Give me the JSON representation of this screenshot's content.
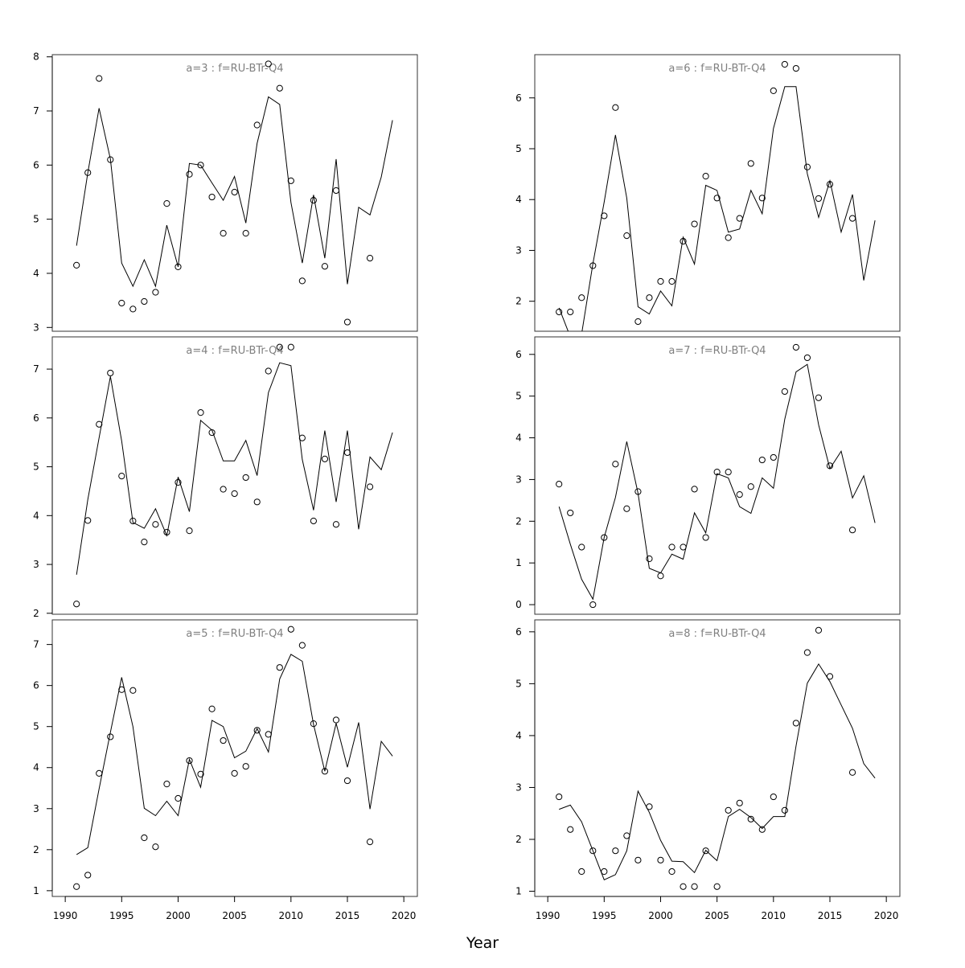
{
  "chart_data": {
    "type": "scatter+line",
    "xlabel": "Year",
    "xlim": [
      1988.85,
      2021.2
    ],
    "xticks": [
      1990,
      1995,
      2000,
      2005,
      2010,
      2015,
      2020
    ],
    "years": [
      1991,
      1992,
      1993,
      1994,
      1995,
      1996,
      1997,
      1998,
      1999,
      2000,
      2001,
      2002,
      2003,
      2004,
      2005,
      2006,
      2007,
      2008,
      2009,
      2010,
      2011,
      2012,
      2013,
      2014,
      2015,
      2016,
      2017,
      2018,
      2019
    ],
    "panels": [
      {
        "title": "a=3  :  f=RU-BTr-Q4",
        "ylim": [
          2.93,
          8.04
        ],
        "yticks": [
          3,
          4,
          5,
          6,
          7,
          8
        ],
        "observed": [
          4.15,
          5.86,
          7.6,
          6.1,
          3.45,
          3.34,
          3.48,
          3.65,
          5.29,
          4.12,
          5.83,
          6.0,
          5.41,
          4.74,
          5.5,
          4.74,
          6.74,
          7.87,
          7.42,
          5.71,
          3.86,
          5.35,
          4.13,
          5.53,
          3.1,
          null,
          4.28,
          null,
          null
        ],
        "fitted": [
          4.51,
          5.86,
          7.05,
          6.11,
          4.19,
          3.76,
          4.25,
          3.76,
          4.89,
          4.12,
          6.03,
          6.0,
          5.67,
          5.35,
          5.79,
          4.93,
          6.4,
          7.26,
          7.12,
          5.31,
          4.19,
          5.45,
          4.28,
          6.11,
          3.8,
          5.22,
          5.08,
          5.78,
          6.83
        ]
      },
      {
        "title": "a=4  :  f=RU-BTr-Q4",
        "ylim": [
          1.98,
          7.66
        ],
        "yticks": [
          2,
          3,
          4,
          5,
          6,
          7
        ],
        "observed": [
          2.19,
          3.9,
          5.87,
          6.92,
          4.81,
          3.89,
          3.46,
          3.82,
          3.66,
          4.68,
          3.69,
          6.11,
          5.7,
          4.54,
          4.45,
          4.78,
          4.28,
          6.96,
          7.45,
          7.45,
          5.59,
          3.89,
          5.16,
          3.82,
          5.29,
          null,
          4.59,
          null,
          null
        ],
        "fitted": [
          2.79,
          4.33,
          5.59,
          6.85,
          5.53,
          3.86,
          3.74,
          4.14,
          3.59,
          4.79,
          4.08,
          5.95,
          5.75,
          5.12,
          5.12,
          5.54,
          4.82,
          6.52,
          7.13,
          7.07,
          5.15,
          4.11,
          5.74,
          4.28,
          5.74,
          3.72,
          5.2,
          4.94,
          5.7
        ]
      },
      {
        "title": "a=5  :  f=RU-BTr-Q4",
        "ylim": [
          0.86,
          7.6
        ],
        "yticks": [
          1,
          2,
          3,
          4,
          5,
          6,
          7
        ],
        "observed": [
          1.1,
          1.38,
          3.86,
          4.75,
          5.9,
          5.88,
          2.29,
          2.07,
          3.6,
          3.25,
          4.17,
          3.84,
          5.43,
          4.66,
          3.86,
          4.03,
          4.91,
          4.81,
          6.44,
          7.37,
          6.98,
          5.07,
          3.91,
          5.16,
          3.68,
          null,
          2.19,
          null,
          null
        ],
        "fitted": [
          1.88,
          2.05,
          3.48,
          4.86,
          6.2,
          5.0,
          3.01,
          2.83,
          3.18,
          2.83,
          4.2,
          3.52,
          5.15,
          5.0,
          4.24,
          4.4,
          4.95,
          4.38,
          6.16,
          6.76,
          6.59,
          5.05,
          3.91,
          5.08,
          4.01,
          5.1,
          2.99,
          4.64,
          4.28
        ]
      },
      {
        "title": "a=6  :  f=RU-BTr-Q4",
        "ylim": [
          1.41,
          6.85
        ],
        "yticks": [
          2,
          3,
          4,
          5,
          6
        ],
        "observed": [
          1.79,
          1.79,
          2.07,
          2.7,
          3.68,
          5.81,
          3.29,
          1.6,
          2.07,
          2.39,
          2.39,
          3.18,
          3.52,
          4.46,
          4.03,
          3.25,
          3.63,
          4.71,
          4.03,
          6.14,
          6.66,
          6.58,
          4.64,
          4.02,
          4.3,
          null,
          3.63,
          null,
          null
        ],
        "fitted": [
          1.87,
          1.3,
          1.35,
          2.74,
          3.95,
          5.27,
          4.03,
          1.89,
          1.75,
          2.2,
          1.91,
          3.26,
          2.73,
          4.28,
          4.18,
          3.36,
          3.42,
          4.18,
          3.72,
          5.4,
          6.22,
          6.22,
          4.51,
          3.65,
          4.37,
          3.36,
          4.1,
          2.41,
          3.59
        ]
      },
      {
        "title": "a=7  :  f=RU-BTr-Q4",
        "ylim": [
          -0.23,
          6.42
        ],
        "yticks": [
          0,
          1,
          2,
          3,
          4,
          5,
          6
        ],
        "observed": [
          2.89,
          2.2,
          1.38,
          0.0,
          1.61,
          3.37,
          2.3,
          2.71,
          1.1,
          0.69,
          1.38,
          1.38,
          2.77,
          1.61,
          3.18,
          3.18,
          2.64,
          2.83,
          3.47,
          3.53,
          5.11,
          6.17,
          5.92,
          4.96,
          3.33,
          null,
          1.79,
          null,
          null
        ],
        "fitted": [
          2.35,
          1.45,
          0.61,
          0.13,
          1.61,
          2.57,
          3.91,
          2.67,
          0.87,
          0.76,
          1.21,
          1.09,
          2.2,
          1.72,
          3.14,
          3.04,
          2.35,
          2.19,
          3.04,
          2.79,
          4.45,
          5.58,
          5.76,
          4.31,
          3.26,
          3.68,
          2.56,
          3.09,
          1.96
        ]
      },
      {
        "title": "a=8  :  f=RU-BTr-Q4",
        "ylim": [
          0.9,
          6.23
        ],
        "yticks": [
          1,
          2,
          3,
          4,
          5,
          6
        ],
        "observed": [
          2.82,
          2.19,
          1.38,
          1.78,
          1.38,
          1.78,
          2.07,
          1.6,
          2.63,
          1.6,
          1.38,
          1.09,
          1.09,
          1.78,
          1.09,
          2.56,
          2.7,
          2.39,
          2.19,
          2.82,
          2.56,
          4.24,
          5.6,
          6.03,
          5.14,
          null,
          3.29,
          null,
          null
        ],
        "fitted": [
          2.58,
          2.66,
          2.34,
          1.78,
          1.22,
          1.32,
          1.78,
          2.93,
          2.52,
          1.98,
          1.58,
          1.57,
          1.36,
          1.79,
          1.59,
          2.44,
          2.58,
          2.42,
          2.21,
          2.44,
          2.44,
          3.8,
          5.01,
          5.38,
          5.04,
          4.59,
          4.14,
          3.46,
          3.18
        ]
      }
    ]
  }
}
